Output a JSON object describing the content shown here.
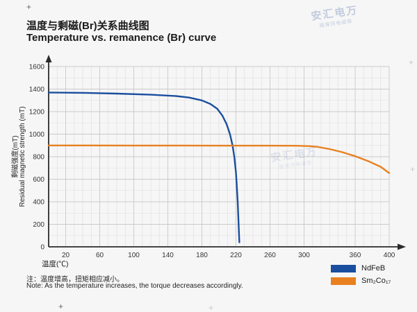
{
  "header": {
    "title_cn": "温度与剩磁(Br)关系曲线图",
    "title_en": "Temperature vs. remanence (Br) curve"
  },
  "axis": {
    "x_label": "温度(℃)",
    "y_label_cn": "剩磁强度(mT)",
    "y_label_en": "Residual magnetic strength (mT)"
  },
  "notes": {
    "cn": "注：温度增高，扭矩相应减小。",
    "en": "Note: As the temperature increases, the torque decreases accordingly."
  },
  "legend": {
    "items": [
      {
        "label": "NdFeB",
        "color": "#1a4e9e"
      },
      {
        "label": "Sm₂Co₁₇",
        "color": "#e8801f"
      }
    ]
  },
  "watermark": {
    "main": "安汇电万",
    "sub": "磁保持电磁铁"
  },
  "decorations": {
    "plus": "+"
  },
  "chart_data": {
    "type": "line",
    "title": "Temperature vs. remanence (Br) curve",
    "xlabel": "温度(℃)",
    "ylabel": "剩磁强度(mT) / Residual magnetic strength (mT)",
    "xlim": [
      0,
      400
    ],
    "ylim": [
      0,
      1600
    ],
    "xticks": [
      20,
      60,
      100,
      140,
      180,
      220,
      260,
      300,
      360,
      400
    ],
    "yticks": [
      0,
      200,
      400,
      600,
      800,
      1000,
      1200,
      1400,
      1600
    ],
    "grid": {
      "x_minor_step": 10,
      "y_minor_step": 100,
      "on": true
    },
    "legend_position": "bottom-right",
    "series": [
      {
        "name": "NdFeB",
        "color": "#1a4e9e",
        "points": [
          [
            0,
            1370
          ],
          [
            40,
            1367
          ],
          [
            80,
            1360
          ],
          [
            120,
            1350
          ],
          [
            150,
            1338
          ],
          [
            165,
            1325
          ],
          [
            180,
            1300
          ],
          [
            190,
            1268
          ],
          [
            198,
            1225
          ],
          [
            204,
            1165
          ],
          [
            209,
            1090
          ],
          [
            213,
            1000
          ],
          [
            216,
            900
          ],
          [
            218,
            800
          ],
          [
            220,
            660
          ],
          [
            221,
            540
          ],
          [
            222,
            400
          ],
          [
            223,
            220
          ],
          [
            224,
            40
          ]
        ]
      },
      {
        "name": "Sm₂Co₁₇",
        "color": "#e8801f",
        "points": [
          [
            0,
            900
          ],
          [
            50,
            900
          ],
          [
            100,
            899
          ],
          [
            150,
            899
          ],
          [
            200,
            898
          ],
          [
            250,
            898
          ],
          [
            290,
            897
          ],
          [
            305,
            894
          ],
          [
            315,
            888
          ],
          [
            330,
            868
          ],
          [
            345,
            840
          ],
          [
            360,
            805
          ],
          [
            375,
            762
          ],
          [
            390,
            710
          ],
          [
            400,
            655
          ]
        ]
      }
    ]
  }
}
